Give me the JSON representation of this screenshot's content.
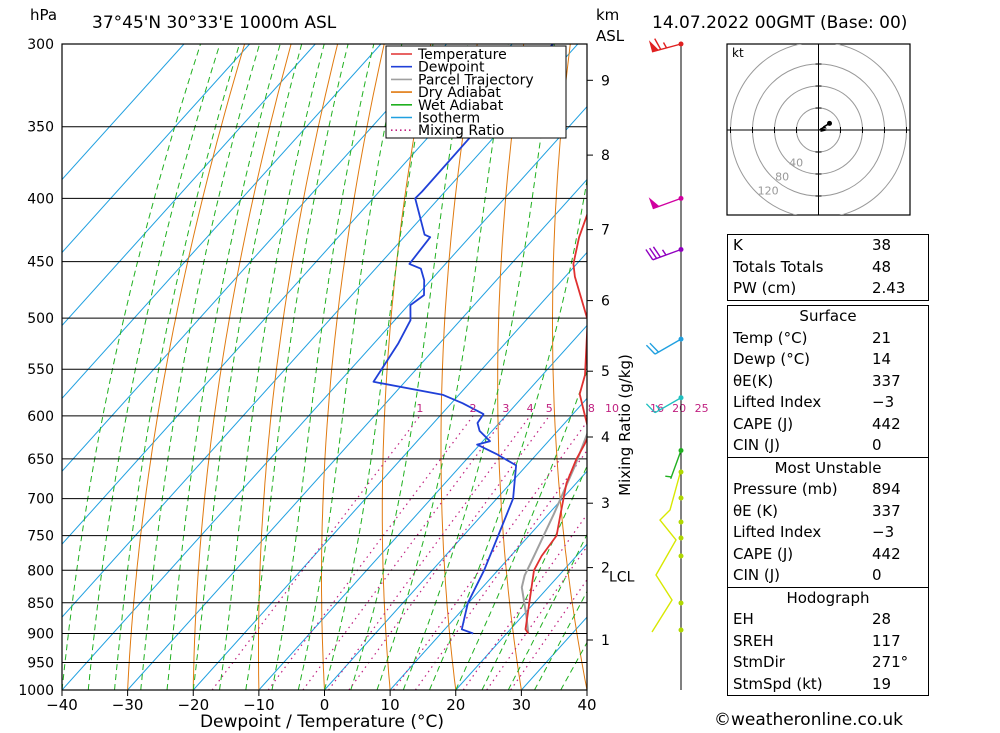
{
  "header": {
    "hpa_unit": "hPa",
    "location": "37°45'N  30°33'E  1000m  ASL",
    "km_unit": "km",
    "asl_unit": "ASL",
    "datetime": "14.07.2022  00GMT  (Base: 00)"
  },
  "chart_data": {
    "type": "line",
    "title": "",
    "xlabel": "Dewpoint / Temperature (°C)",
    "ylabel": "hPa",
    "secondary_ylabel": "Mixing Ratio (g/kg)",
    "x_ticks": [
      -40,
      -30,
      -20,
      -10,
      0,
      10,
      20,
      30,
      40
    ],
    "x_tick_labels": [
      "−40",
      "−30",
      "−20",
      "−10",
      "0",
      "10",
      "20",
      "30",
      "40"
    ],
    "xlim": [
      -40,
      40
    ],
    "pressure_levels": [
      300,
      350,
      400,
      450,
      500,
      550,
      600,
      650,
      700,
      750,
      800,
      850,
      900,
      950,
      1000
    ],
    "ylim": [
      1000,
      300
    ],
    "y_scale": "log",
    "km_ticks": [
      {
        "label": "1",
        "p": 911
      },
      {
        "label": "2",
        "p": 796
      },
      {
        "label": "3",
        "p": 706
      },
      {
        "label": "4",
        "p": 624
      },
      {
        "label": "5",
        "p": 552
      },
      {
        "label": "6",
        "p": 484
      },
      {
        "label": "7",
        "p": 424
      },
      {
        "label": "8",
        "p": 369
      },
      {
        "label": "9",
        "p": 321
      }
    ],
    "lcl": {
      "label": "LCL",
      "p": 808
    },
    "mixing_ratio_labels": [
      "1",
      "2",
      "3",
      "4",
      "5",
      "8",
      "10",
      "16",
      "20",
      "25"
    ],
    "mixing_ratio_values": [
      1,
      2,
      3,
      4,
      5,
      8,
      10,
      16,
      20,
      25
    ],
    "legend": {
      "position": "top-center",
      "entries": [
        {
          "name": "Temperature",
          "color": "#e03030",
          "style": "solid"
        },
        {
          "name": "Dewpoint",
          "color": "#2040d8",
          "style": "solid"
        },
        {
          "name": "Parcel Trajectory",
          "color": "#a0a0a0",
          "style": "solid"
        },
        {
          "name": "Dry Adiabat",
          "color": "#e07a10",
          "style": "solid"
        },
        {
          "name": "Wet Adiabat",
          "color": "#20b020",
          "style": "solid"
        },
        {
          "name": "Isotherm",
          "color": "#20a0e0",
          "style": "solid"
        },
        {
          "name": "Mixing Ratio",
          "color": "#c02080",
          "style": "dotted"
        }
      ]
    },
    "series": [
      {
        "name": "Temperature",
        "color": "#e03030",
        "points": [
          [
            23.3,
            900
          ],
          [
            22.3,
            893
          ],
          [
            15.5,
            800
          ],
          [
            14.7,
            779
          ],
          [
            14.2,
            750
          ],
          [
            11.8,
            720
          ],
          [
            8.5,
            680
          ],
          [
            6.7,
            650
          ],
          [
            5.9,
            632
          ],
          [
            5.2,
            620
          ],
          [
            2.1,
            600
          ],
          [
            -1.7,
            576
          ],
          [
            -3.5,
            556
          ],
          [
            -10.6,
            502
          ],
          [
            -18.5,
            463
          ],
          [
            -20.5,
            452
          ],
          [
            -23.3,
            430
          ],
          [
            -25.3,
            411
          ],
          [
            -28.4,
            386
          ],
          [
            -34.4,
            361
          ]
        ]
      },
      {
        "name": "Dewpoint",
        "color": "#2040d8",
        "points": [
          [
            14.9,
            900
          ],
          [
            12.6,
            893
          ],
          [
            9.9,
            850
          ],
          [
            7.9,
            800
          ],
          [
            5.3,
            750
          ],
          [
            2.5,
            700
          ],
          [
            -1.6,
            658
          ],
          [
            -6.2,
            644
          ],
          [
            -10.4,
            633
          ],
          [
            -8.9,
            629
          ],
          [
            -11.9,
            617
          ],
          [
            -13.3,
            608
          ],
          [
            -13.6,
            598
          ],
          [
            -18.3,
            586
          ],
          [
            -22.4,
            577
          ],
          [
            -34.8,
            563
          ],
          [
            -36.3,
            524
          ],
          [
            -37.6,
            502
          ],
          [
            -39.7,
            488
          ],
          [
            -39.0,
            479
          ],
          [
            -41.0,
            466
          ],
          [
            -43.1,
            456
          ],
          [
            -45.5,
            452
          ],
          [
            -46.0,
            430
          ],
          [
            -47.2,
            428
          ],
          [
            -53.6,
            400
          ],
          [
            -53.5,
            395
          ],
          [
            -53.8,
            300
          ]
        ]
      },
      {
        "name": "Parcel Trajectory",
        "color": "#a0a0a0",
        "points": [
          [
            23.3,
            900
          ],
          [
            20.5,
            870
          ],
          [
            16.0,
            826
          ],
          [
            14.8,
            808
          ],
          [
            13.6,
            780
          ],
          [
            10.8,
            720
          ],
          [
            7.5,
            660
          ],
          [
            3.5,
            600
          ],
          [
            -1.2,
            540
          ],
          [
            -5.3,
            500
          ],
          [
            -10.0,
            460
          ],
          [
            -15.5,
            420
          ],
          [
            -22.0,
            380
          ],
          [
            -28.5,
            345
          ],
          [
            -37.5,
            310
          ],
          [
            -40.5,
            300
          ]
        ]
      }
    ],
    "wind_barbs": [
      {
        "p": 300,
        "dir_deg": 255,
        "speed_kt": 65,
        "color": "#e02020"
      },
      {
        "p": 400,
        "dir_deg": 250,
        "speed_kt": 50,
        "color": "#d000a0"
      },
      {
        "p": 440,
        "dir_deg": 250,
        "speed_kt": 35,
        "color": "#9000c0"
      },
      {
        "p": 520,
        "dir_deg": 240,
        "speed_kt": 20,
        "color": "#20a0e0"
      },
      {
        "p": 580,
        "dir_deg": 240,
        "speed_kt": 15,
        "color": "#20c0c0"
      },
      {
        "p": 640,
        "dir_deg": 200,
        "speed_kt": 5,
        "color": "#20b020"
      }
    ],
    "hodograph": {
      "unit_label": "kt",
      "ring_labels": [
        "40",
        "80",
        "120"
      ],
      "points_uv": [
        [
          1,
          0
        ],
        [
          4,
          2
        ],
        [
          6,
          2
        ],
        [
          5,
          3
        ],
        [
          10,
          6
        ]
      ]
    }
  },
  "indices": {
    "rows": [
      {
        "label": "K",
        "value": "38"
      },
      {
        "label": "Totals Totals",
        "value": "48"
      },
      {
        "label": "PW (cm)",
        "value": "2.43"
      }
    ]
  },
  "surface": {
    "title": "Surface",
    "rows": [
      {
        "label": "Temp (°C)",
        "value": "21"
      },
      {
        "label": "Dewp (°C)",
        "value": "14"
      },
      {
        "label": "θE(K)",
        "value": "337"
      },
      {
        "label": "Lifted Index",
        "value": "−3"
      },
      {
        "label": "CAPE (J)",
        "value": "442"
      },
      {
        "label": "CIN (J)",
        "value": "0"
      }
    ]
  },
  "most_unstable": {
    "title": "Most Unstable",
    "rows": [
      {
        "label": "Pressure (mb)",
        "value": "894"
      },
      {
        "label": "θE (K)",
        "value": "337"
      },
      {
        "label": "Lifted Index",
        "value": "−3"
      },
      {
        "label": "CAPE (J)",
        "value": "442"
      },
      {
        "label": "CIN (J)",
        "value": "0"
      }
    ]
  },
  "hodograph_table": {
    "title": "Hodograph",
    "rows": [
      {
        "label": "EH",
        "value": "28"
      },
      {
        "label": "SREH",
        "value": "117"
      },
      {
        "label": "StmDir",
        "value": "271°"
      },
      {
        "label": "StmSpd (kt)",
        "value": "19"
      }
    ]
  },
  "footer": {
    "credit": "©weatheronline.co.uk"
  }
}
